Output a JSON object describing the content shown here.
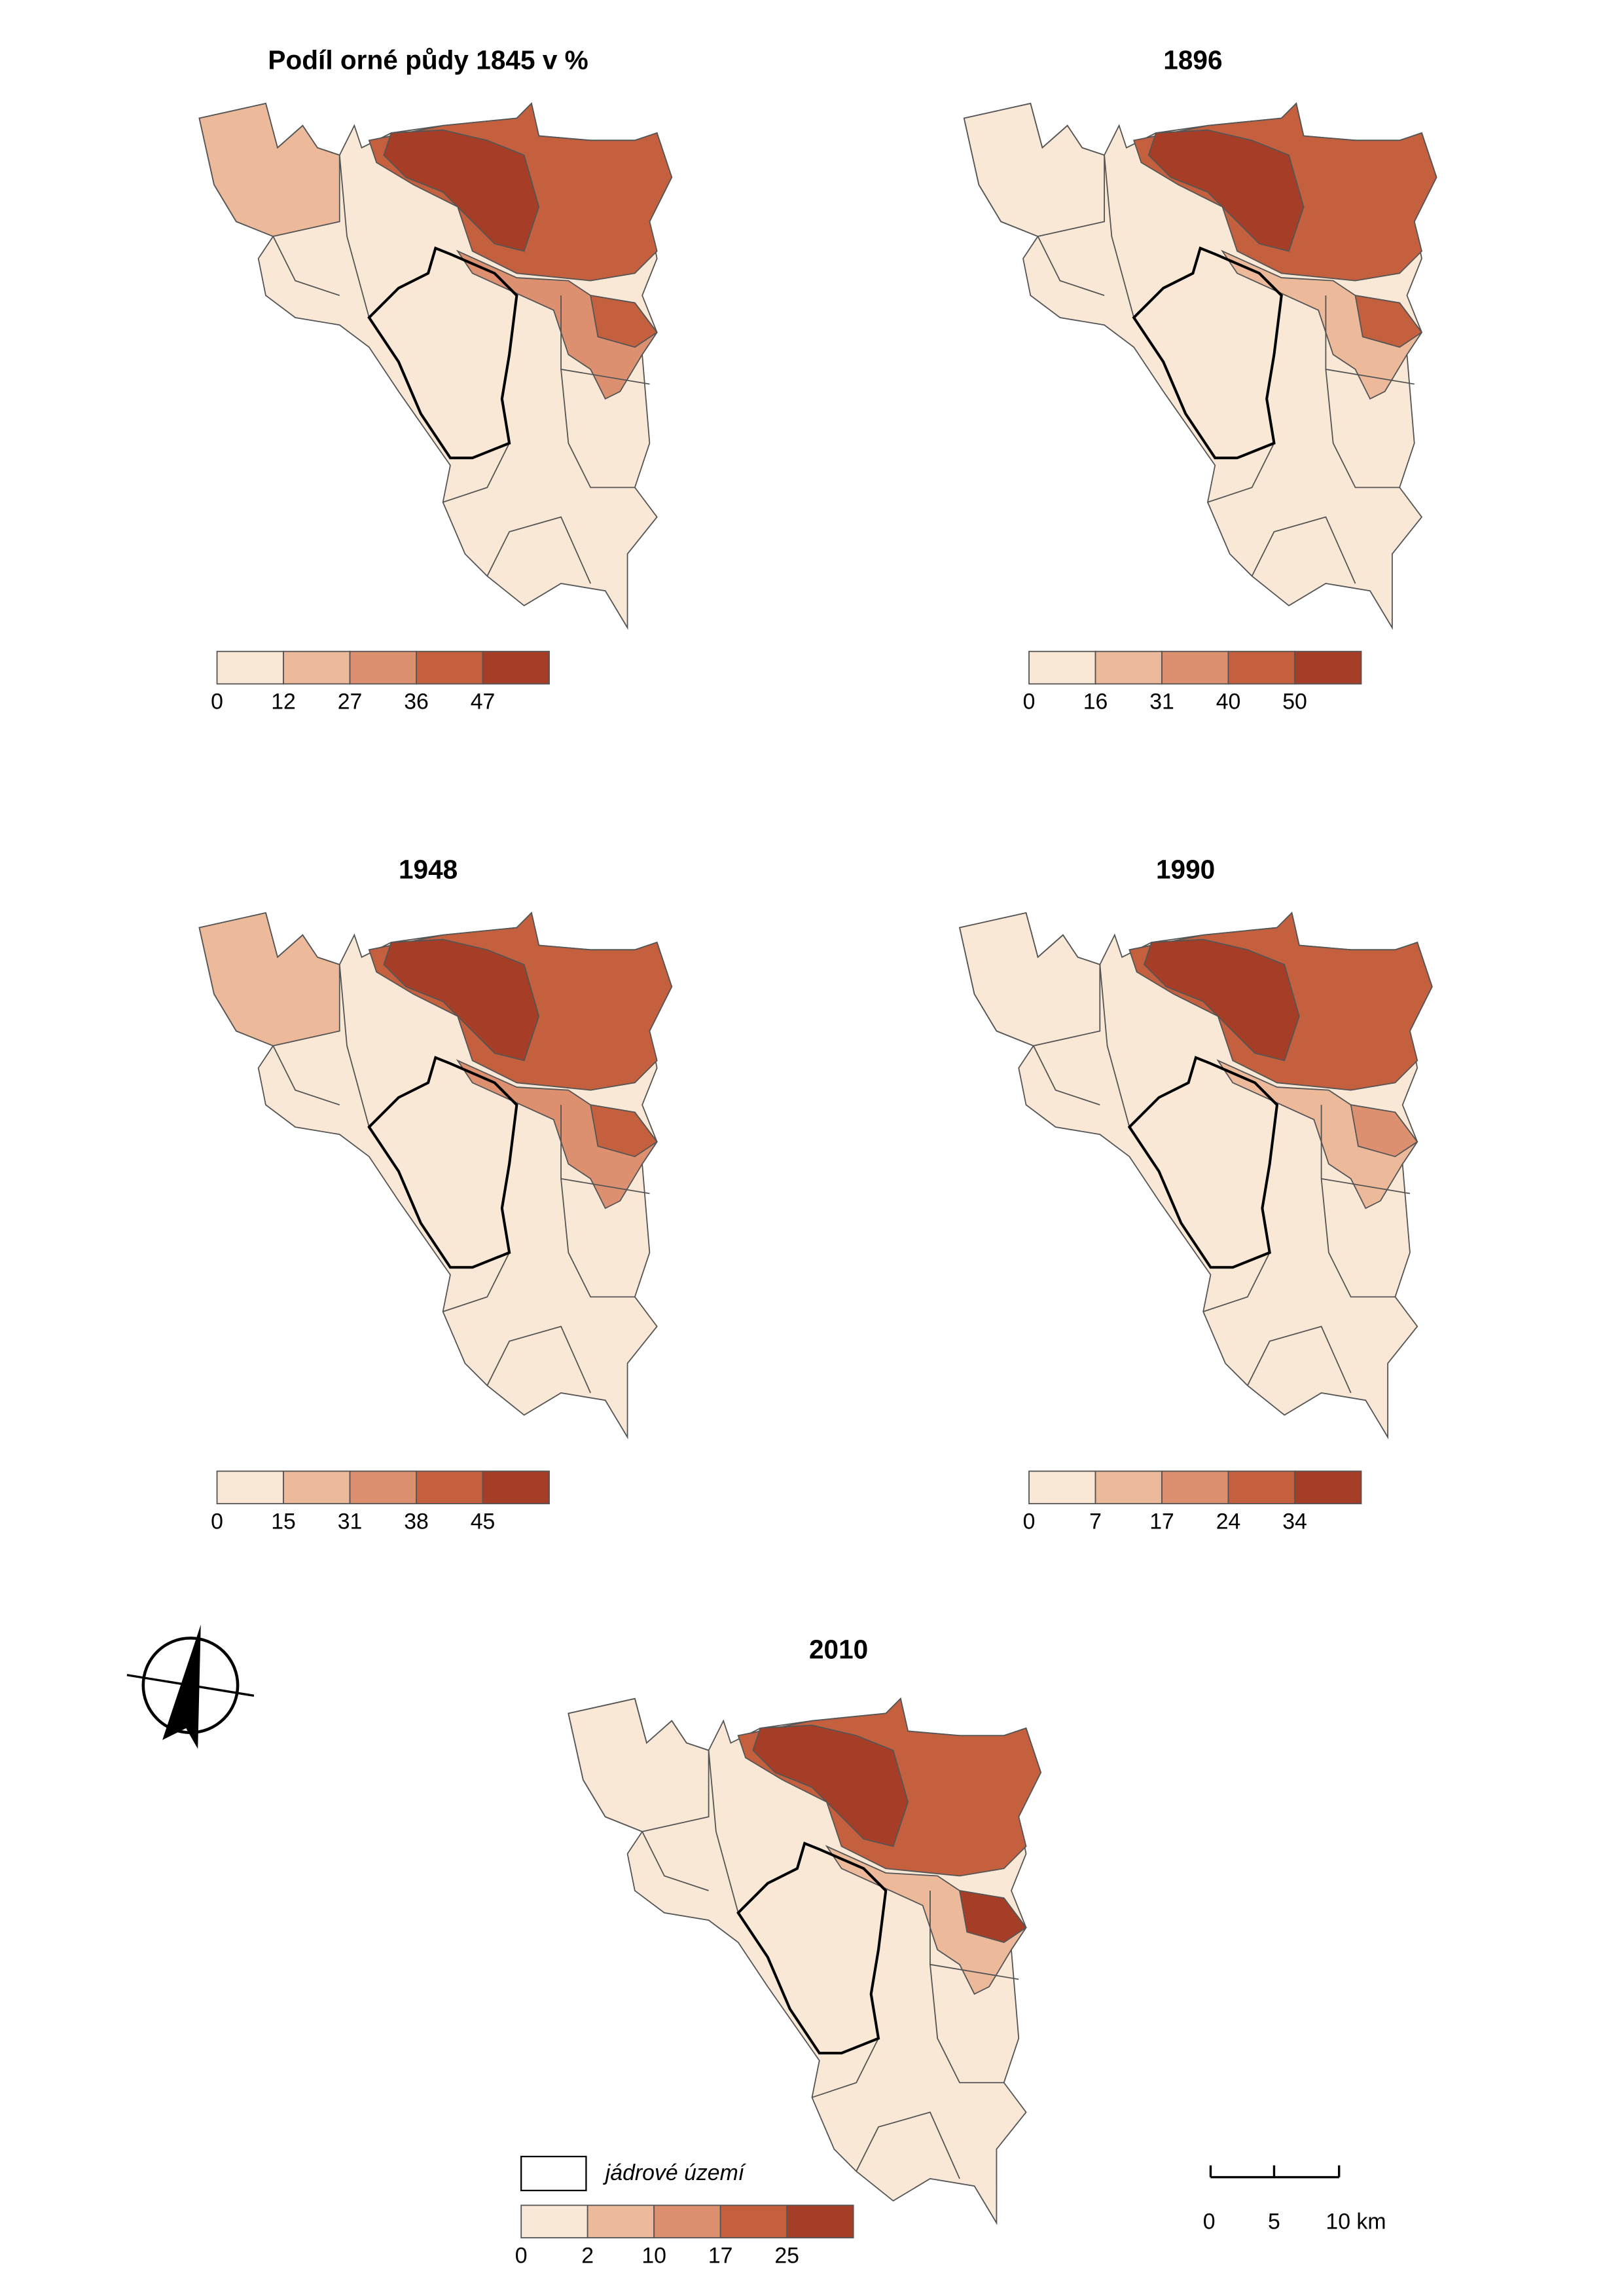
{
  "maps": [
    {
      "title": "Podíl orné půdy 1845 v %",
      "legend_breaks": [
        0,
        12,
        27,
        36,
        47
      ]
    },
    {
      "title": "1896",
      "legend_breaks": [
        0,
        16,
        31,
        40,
        50
      ]
    },
    {
      "title": "1948",
      "legend_breaks": [
        0,
        15,
        31,
        38,
        45
      ]
    },
    {
      "title": "1990",
      "legend_breaks": [
        0,
        7,
        17,
        24,
        34
      ]
    },
    {
      "title": "2010",
      "legend_breaks": [
        0,
        2,
        10,
        17,
        25
      ]
    }
  ],
  "legend_colors": [
    "#fae8d6",
    "#ecb99a",
    "#dd9070",
    "#c5603f",
    "#a63e27"
  ],
  "core_area_label": "jádrové území",
  "scale_bar_labels": [
    "0",
    "5",
    "10 km"
  ]
}
